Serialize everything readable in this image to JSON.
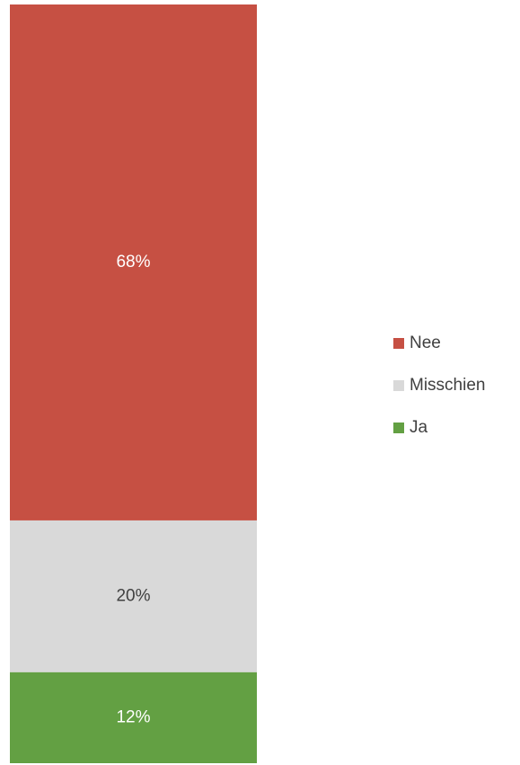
{
  "chart_data": {
    "type": "stacked_bar",
    "categories": [
      null
    ],
    "series": [
      {
        "name": "Ja",
        "color": "#63a043",
        "values": [
          12
        ],
        "value_labels": [
          "12%"
        ]
      },
      {
        "name": "Misschien",
        "color": "#d9d9d9",
        "values": [
          20
        ],
        "value_labels": [
          "20%"
        ]
      },
      {
        "name": "Nee",
        "color": "#c65043",
        "values": [
          68
        ],
        "value_labels": [
          "68%"
        ]
      }
    ],
    "legend": "right"
  }
}
